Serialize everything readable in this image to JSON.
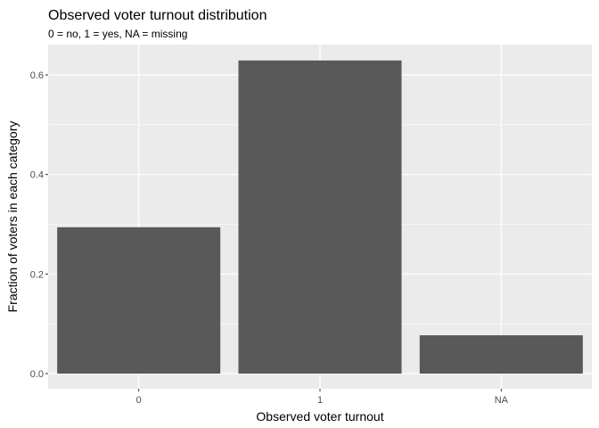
{
  "chart_data": {
    "type": "bar",
    "title": "Observed voter turnout distribution",
    "subtitle": "0 = no, 1 = yes, NA = missing",
    "xlabel": "Observed voter turnout",
    "ylabel": "Fraction of voters in each category",
    "categories": [
      "0",
      "1",
      "NA"
    ],
    "values": [
      0.294,
      0.629,
      0.077
    ],
    "ylim": [
      0,
      0.66
    ],
    "yticks": [
      0.0,
      0.2,
      0.4,
      0.6
    ],
    "ytick_labels": [
      "0.0",
      "0.2",
      "0.4",
      "0.6"
    ],
    "grid": true,
    "legend": "none",
    "colors": {
      "panel": "#ebebeb",
      "grid_major": "#ffffff",
      "bar": "#595959",
      "tick_text": "#4d4d4d",
      "tick_mark": "#333333"
    }
  }
}
